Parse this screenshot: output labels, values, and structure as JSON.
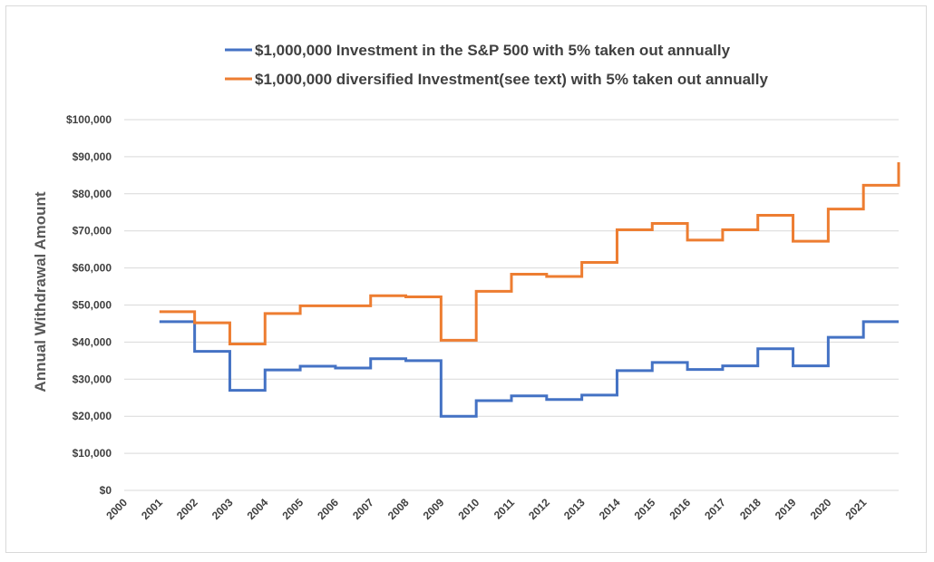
{
  "chart_data": {
    "type": "line",
    "step": true,
    "title": "",
    "xlabel": "",
    "ylabel": "Annual Withdrawal Amount",
    "ylim": [
      0,
      100000
    ],
    "yticks": [
      0,
      10000,
      20000,
      30000,
      40000,
      50000,
      60000,
      70000,
      80000,
      90000,
      100000
    ],
    "ytick_labels": [
      "$0",
      "$10,000",
      "$20,000",
      "$30,000",
      "$40,000",
      "$50,000",
      "$60,000",
      "$70,000",
      "$80,000",
      "$90,000",
      "$100,000"
    ],
    "xlim": [
      2000,
      2022
    ],
    "x_tick_labels": [
      "2000",
      "2001",
      "2002",
      "2003",
      "2004",
      "2005",
      "2006",
      "2007",
      "2008",
      "2009",
      "2010",
      "2011",
      "2012",
      "2013",
      "2014",
      "2015",
      "2016",
      "2017",
      "2018",
      "2019",
      "2020",
      "2021"
    ],
    "grid": true,
    "legend_position": "top",
    "series": [
      {
        "name": "$1,000,000 Investment in the S&P 500 with 5% taken out annually",
        "color": "#4472c4",
        "x": [
          2001,
          2002,
          2003,
          2004,
          2005,
          2006,
          2007,
          2008,
          2009,
          2010,
          2011,
          2012,
          2013,
          2014,
          2015,
          2016,
          2017,
          2018,
          2019,
          2020,
          2021
        ],
        "values": [
          45500,
          37500,
          27000,
          32500,
          33500,
          33000,
          35500,
          35000,
          20000,
          24200,
          25500,
          24500,
          25700,
          32300,
          34500,
          32600,
          33600,
          38200,
          33600,
          41300,
          45500
        ]
      },
      {
        "name": "$1,000,000 diversified Investment(see text) with 5% taken out annually",
        "color": "#ed7d31",
        "x": [
          2001,
          2002,
          2003,
          2004,
          2005,
          2006,
          2007,
          2008,
          2009,
          2010,
          2011,
          2012,
          2013,
          2014,
          2015,
          2016,
          2017,
          2018,
          2019,
          2020,
          2021
        ],
        "values": [
          48200,
          45200,
          39500,
          47700,
          49800,
          49800,
          52500,
          52200,
          40500,
          53700,
          58300,
          57700,
          61500,
          70300,
          72000,
          67500,
          70300,
          74200,
          67200,
          75900,
          82300
        ],
        "end_value": 88500
      }
    ]
  },
  "colors": {
    "grid": "#d9d9d9",
    "border": "#d9d9d9",
    "text": "#404040"
  }
}
